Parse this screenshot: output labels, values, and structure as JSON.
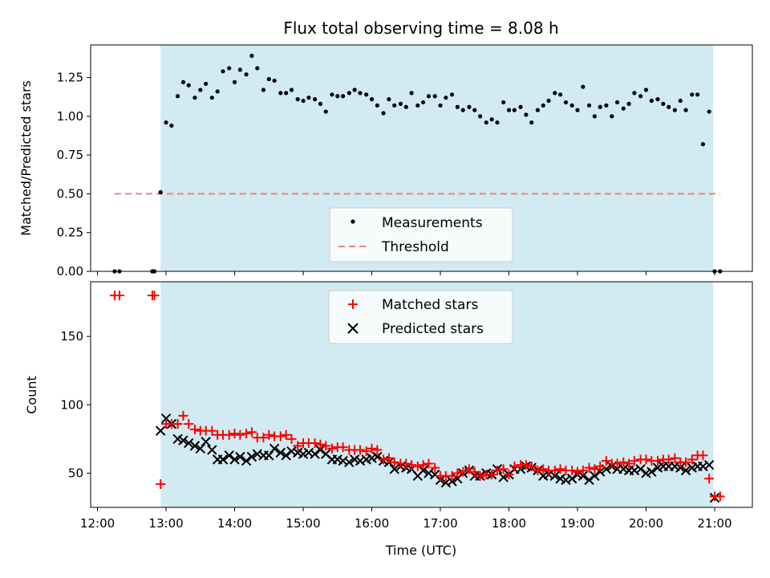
{
  "chart_data": [
    {
      "type": "scatter",
      "title": "Flux total observing time = 8.08 h",
      "ylabel": "Matched/Predicted stars",
      "xlabel": "",
      "x_unit": "hours UTC",
      "xlim": [
        11.9,
        21.55
      ],
      "ylim": [
        0.0,
        1.46
      ],
      "y_ticks": [
        0.0,
        0.25,
        0.5,
        0.75,
        1.0,
        1.25
      ],
      "y_tick_labels": [
        "0.00",
        "0.25",
        "0.50",
        "0.75",
        "1.00",
        "1.25"
      ],
      "observing_window": [
        12.92,
        20.98
      ],
      "observing_window_color": "#add8e6",
      "threshold": {
        "name": "Threshold",
        "value": 0.5,
        "x_range": [
          12.25,
          21.08
        ],
        "color": "#f08080"
      },
      "legend": {
        "placement": "lower-center",
        "entries": [
          "Measurements",
          "Threshold"
        ]
      },
      "series": [
        {
          "name": "Measurements",
          "color": "#000000",
          "x": [
            12.25,
            12.32,
            12.8,
            12.83,
            12.92,
            13.0,
            13.08,
            13.17,
            13.25,
            13.33,
            13.42,
            13.5,
            13.58,
            13.67,
            13.75,
            13.83,
            13.92,
            14.0,
            14.08,
            14.17,
            14.25,
            14.33,
            14.42,
            14.5,
            14.58,
            14.67,
            14.75,
            14.83,
            14.92,
            15.0,
            15.08,
            15.17,
            15.25,
            15.33,
            15.42,
            15.5,
            15.58,
            15.67,
            15.75,
            15.83,
            15.92,
            16.0,
            16.08,
            16.17,
            16.25,
            16.33,
            16.42,
            16.5,
            16.58,
            16.67,
            16.75,
            16.83,
            16.92,
            17.0,
            17.08,
            17.17,
            17.25,
            17.33,
            17.42,
            17.5,
            17.58,
            17.67,
            17.75,
            17.83,
            17.92,
            18.0,
            18.08,
            18.17,
            18.25,
            18.33,
            18.42,
            18.5,
            18.58,
            18.67,
            18.75,
            18.83,
            18.92,
            19.0,
            19.08,
            19.17,
            19.25,
            19.33,
            19.42,
            19.5,
            19.58,
            19.67,
            19.75,
            19.83,
            19.92,
            20.0,
            20.08,
            20.17,
            20.25,
            20.33,
            20.42,
            20.5,
            20.58,
            20.67,
            20.75,
            20.83,
            20.92,
            21.0,
            21.08
          ],
          "y": [
            0.0,
            0.0,
            0.0,
            0.0,
            0.51,
            0.96,
            0.94,
            1.13,
            1.22,
            1.2,
            1.12,
            1.17,
            1.21,
            1.12,
            1.16,
            1.29,
            1.31,
            1.22,
            1.3,
            1.27,
            1.39,
            1.31,
            1.17,
            1.24,
            1.23,
            1.15,
            1.15,
            1.17,
            1.11,
            1.1,
            1.12,
            1.11,
            1.08,
            1.03,
            1.14,
            1.13,
            1.13,
            1.15,
            1.17,
            1.15,
            1.14,
            1.11,
            1.07,
            1.02,
            1.11,
            1.07,
            1.08,
            1.06,
            1.15,
            1.07,
            1.09,
            1.13,
            1.13,
            1.07,
            1.12,
            1.14,
            1.06,
            1.04,
            1.06,
            1.04,
            1.0,
            0.96,
            0.98,
            0.96,
            1.09,
            1.04,
            1.04,
            1.06,
            1.01,
            0.96,
            1.04,
            1.07,
            1.1,
            1.15,
            1.14,
            1.09,
            1.07,
            1.04,
            1.19,
            1.07,
            1.0,
            1.06,
            1.07,
            1.0,
            1.09,
            1.05,
            1.08,
            1.15,
            1.13,
            1.17,
            1.1,
            1.11,
            1.08,
            1.06,
            1.04,
            1.1,
            1.04,
            1.14,
            1.14,
            0.82,
            1.03,
            0.0,
            0.0
          ]
        }
      ]
    },
    {
      "type": "scatter",
      "title": "",
      "ylabel": "Count",
      "xlabel": "Time (UTC)",
      "x_unit": "hours UTC",
      "xlim": [
        11.9,
        21.55
      ],
      "ylim": [
        25,
        190
      ],
      "y_ticks": [
        50,
        100,
        150
      ],
      "y_tick_labels": [
        "50",
        "100",
        "150"
      ],
      "x_ticks": [
        12,
        13,
        14,
        15,
        16,
        17,
        18,
        19,
        20,
        21
      ],
      "x_tick_labels": [
        "12:00",
        "13:00",
        "14:00",
        "15:00",
        "16:00",
        "17:00",
        "18:00",
        "19:00",
        "20:00",
        "21:00"
      ],
      "observing_window": [
        12.92,
        20.98
      ],
      "observing_window_color": "#add8e6",
      "legend": {
        "placement": "upper-center",
        "entries": [
          "Matched stars",
          "Predicted stars"
        ]
      },
      "series": [
        {
          "name": "Matched stars",
          "color": "#ff0000",
          "marker": "+",
          "x": [
            12.25,
            12.32,
            12.8,
            12.83,
            12.92,
            13.0,
            13.08,
            13.17,
            13.25,
            13.33,
            13.42,
            13.5,
            13.58,
            13.67,
            13.75,
            13.83,
            13.92,
            14.0,
            14.08,
            14.17,
            14.25,
            14.33,
            14.42,
            14.5,
            14.58,
            14.67,
            14.75,
            14.83,
            14.92,
            15.0,
            15.08,
            15.17,
            15.25,
            15.33,
            15.42,
            15.5,
            15.58,
            15.67,
            15.75,
            15.83,
            15.92,
            16.0,
            16.08,
            16.17,
            16.25,
            16.33,
            16.42,
            16.5,
            16.58,
            16.67,
            16.75,
            16.83,
            16.92,
            17.0,
            17.08,
            17.17,
            17.25,
            17.33,
            17.42,
            17.5,
            17.58,
            17.67,
            17.75,
            17.83,
            17.92,
            18.0,
            18.08,
            18.17,
            18.25,
            18.33,
            18.42,
            18.5,
            18.58,
            18.67,
            18.75,
            18.83,
            18.92,
            19.0,
            19.08,
            19.17,
            19.25,
            19.33,
            19.42,
            19.5,
            19.58,
            19.67,
            19.75,
            19.83,
            19.92,
            20.0,
            20.08,
            20.17,
            20.25,
            20.33,
            20.42,
            20.5,
            20.58,
            20.67,
            20.75,
            20.83,
            20.92,
            21.0,
            21.08
          ],
          "y": [
            180,
            180,
            180,
            180,
            42,
            86,
            86,
            86,
            92,
            86,
            82,
            81,
            81,
            81,
            78,
            78,
            78,
            79,
            78,
            79,
            80,
            76,
            76,
            78,
            77,
            77,
            78,
            75,
            70,
            72,
            72,
            72,
            71,
            70,
            68,
            69,
            69,
            67,
            67,
            67,
            66,
            68,
            67,
            60,
            61,
            58,
            57,
            57,
            56,
            55,
            56,
            57,
            54,
            48,
            48,
            48,
            50,
            51,
            53,
            51,
            48,
            49,
            49,
            52,
            53,
            49,
            55,
            56,
            56,
            55,
            52,
            53,
            52,
            52,
            53,
            52,
            52,
            51,
            52,
            54,
            53,
            55,
            59,
            57,
            57,
            58,
            57,
            59,
            60,
            60,
            59,
            59,
            60,
            60,
            61,
            58,
            58,
            60,
            63,
            63,
            46,
            33,
            33
          ]
        },
        {
          "name": "Predicted stars",
          "color": "#000000",
          "marker": "x",
          "x": [
            12.92,
            13.0,
            13.08,
            13.17,
            13.25,
            13.33,
            13.42,
            13.5,
            13.58,
            13.67,
            13.75,
            13.83,
            13.92,
            14.0,
            14.08,
            14.17,
            14.25,
            14.33,
            14.42,
            14.5,
            14.58,
            14.67,
            14.75,
            14.83,
            14.92,
            15.0,
            15.08,
            15.17,
            15.25,
            15.33,
            15.42,
            15.5,
            15.58,
            15.67,
            15.75,
            15.83,
            15.92,
            16.0,
            16.08,
            16.17,
            16.25,
            16.33,
            16.42,
            16.5,
            16.58,
            16.67,
            16.75,
            16.83,
            16.92,
            17.0,
            17.08,
            17.17,
            17.25,
            17.33,
            17.42,
            17.5,
            17.58,
            17.67,
            17.75,
            17.83,
            17.92,
            18.0,
            18.08,
            18.17,
            18.25,
            18.33,
            18.42,
            18.5,
            18.58,
            18.67,
            18.75,
            18.83,
            18.92,
            19.0,
            19.08,
            19.17,
            19.25,
            19.33,
            19.42,
            19.5,
            19.58,
            19.67,
            19.75,
            19.83,
            19.92,
            20.0,
            20.08,
            20.17,
            20.25,
            20.33,
            20.42,
            20.5,
            20.58,
            20.67,
            20.75,
            20.83,
            20.92,
            21.0
          ],
          "y": [
            81,
            90,
            86,
            75,
            74,
            72,
            70,
            68,
            73,
            67,
            60,
            60,
            63,
            60,
            62,
            59,
            62,
            64,
            63,
            63,
            68,
            65,
            63,
            66,
            65,
            64,
            65,
            64,
            67,
            64,
            60,
            60,
            59,
            58,
            60,
            59,
            60,
            61,
            62,
            59,
            58,
            53,
            55,
            54,
            53,
            48,
            52,
            50,
            49,
            45,
            43,
            44,
            46,
            50,
            52,
            48,
            48,
            50,
            49,
            53,
            47,
            49,
            53,
            53,
            55,
            54,
            52,
            48,
            49,
            48,
            46,
            45,
            46,
            49,
            48,
            45,
            48,
            51,
            53,
            55,
            53,
            53,
            52,
            52,
            53,
            50,
            51,
            54,
            55,
            55,
            55,
            54,
            52,
            54,
            55,
            55,
            56,
            32
          ]
        }
      ]
    }
  ]
}
